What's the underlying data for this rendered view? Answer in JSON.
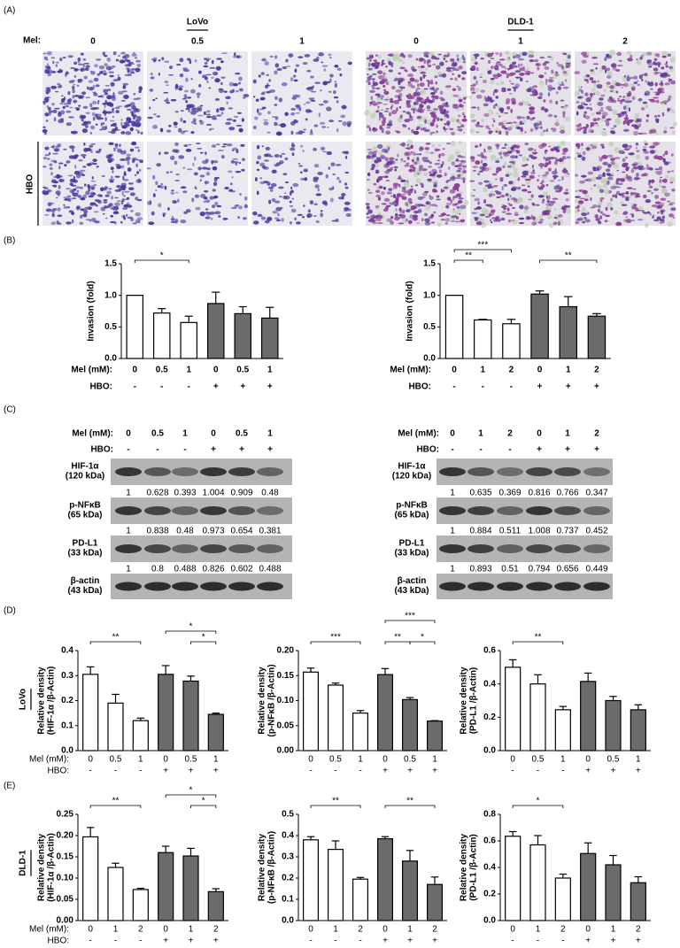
{
  "panel_labels": [
    "(A)",
    "(B)",
    "(C)",
    "(D)",
    "(E)"
  ],
  "panel_a": {
    "mel_label": "Mel:",
    "hbo_label": "HBO",
    "groups": [
      {
        "title": "LoVo",
        "doses": [
          "0",
          "0.5",
          "1"
        ]
      },
      {
        "title": "DLD-1",
        "doses": [
          "0",
          "1",
          "2"
        ]
      }
    ]
  },
  "row_labels": [
    "LoVo",
    "DLD-1"
  ],
  "western_blots": [
    {
      "mel_label": "Mel (mM):",
      "hbo_label": "HBO:",
      "mel": [
        "0",
        "0.5",
        "1",
        "0",
        "0.5",
        "1"
      ],
      "hbo": [
        "-",
        "-",
        "-",
        "+",
        "+",
        "+"
      ],
      "proteins": [
        {
          "name": "HIF-1α",
          "size": "(120 kDa)",
          "values": [
            1,
            0.628,
            0.393,
            1.004,
            0.909,
            0.48
          ]
        },
        {
          "name": "p-NFκB",
          "size": "(65 kDa)",
          "values": [
            1,
            0.838,
            0.48,
            0.973,
            0.654,
            0.381
          ]
        },
        {
          "name": "PD-L1",
          "size": "(33 kDa)",
          "values": [
            1,
            0.8,
            0.488,
            0.826,
            0.602,
            0.488
          ]
        }
      ],
      "loading": {
        "name": "β-actin",
        "size": "(43 kDa)"
      }
    },
    {
      "mel_label": "Mel (mM):",
      "hbo_label": "HBO:",
      "mel": [
        "0",
        "1",
        "2",
        "0",
        "1",
        "2"
      ],
      "hbo": [
        "-",
        "-",
        "-",
        "+",
        "+",
        "+"
      ],
      "proteins": [
        {
          "name": "HIF-1α",
          "size": "(120 kDa)",
          "values": [
            1,
            0.635,
            0.369,
            0.816,
            0.766,
            0.347
          ]
        },
        {
          "name": "p-NFκB",
          "size": "(65 kDa)",
          "values": [
            1,
            0.884,
            0.511,
            1.008,
            0.737,
            0.452
          ]
        },
        {
          "name": "PD-L1",
          "size": "(33 kDa)",
          "values": [
            1,
            0.893,
            0.51,
            0.794,
            0.656,
            0.449
          ]
        }
      ],
      "loading": {
        "name": "β-actin",
        "size": "(43 kDa)"
      }
    }
  ],
  "chart_data": [
    {
      "type": "bar",
      "ylabel": [
        "Invasion (fold)"
      ],
      "xrow_labels": [
        "Mel (mM):",
        "HBO:"
      ],
      "categories": [
        "0",
        "0.5",
        "1",
        "0",
        "0.5",
        "1"
      ],
      "hbo": [
        "-",
        "-",
        "-",
        "+",
        "+",
        "+"
      ],
      "values": [
        1.0,
        0.72,
        0.57,
        0.87,
        0.71,
        0.64
      ],
      "errors": [
        0,
        0.07,
        0.1,
        0.18,
        0.11,
        0.17
      ],
      "colors": [
        "#ffffff",
        "#ffffff",
        "#ffffff",
        "#6b6b6b",
        "#6b6b6b",
        "#6b6b6b"
      ],
      "ylim": [
        0,
        1.5
      ],
      "yticks": [
        {
          "value": 0,
          "label": "0.0"
        },
        0.5,
        {
          "value": 1,
          "label": "1.0"
        },
        1.5
      ],
      "sig": [
        {
          "from": 0,
          "to": 2,
          "label": "*"
        }
      ]
    },
    {
      "type": "bar",
      "ylabel": [
        "Invasion (fold)"
      ],
      "xrow_labels": [
        "Mel (mM):",
        "HBO:"
      ],
      "categories": [
        "0",
        "1",
        "2",
        "0",
        "1",
        "2"
      ],
      "hbo": [
        "-",
        "-",
        "-",
        "+",
        "+",
        "+"
      ],
      "values": [
        1.0,
        0.61,
        0.55,
        1.02,
        0.82,
        0.67
      ],
      "errors": [
        0,
        0.01,
        0.07,
        0.05,
        0.16,
        0.04
      ],
      "colors": [
        "#ffffff",
        "#ffffff",
        "#ffffff",
        "#6b6b6b",
        "#6b6b6b",
        "#6b6b6b"
      ],
      "ylim": [
        0,
        1.5
      ],
      "yticks": [
        {
          "value": 0,
          "label": "0.0"
        },
        0.5,
        {
          "value": 1,
          "label": "1.0"
        },
        1.5
      ],
      "sig": [
        {
          "from": 0,
          "to": 1,
          "label": "**"
        },
        {
          "from": 0,
          "to": 2,
          "label": "***"
        },
        {
          "from": 3,
          "to": 5,
          "label": "**"
        }
      ]
    },
    {
      "type": "bar",
      "ylabel": [
        "Relative density",
        "(HIF-1α /β-Actin)"
      ],
      "xrow_labels": [
        "Mel (mM):",
        "HBO:"
      ],
      "categories": [
        "0",
        "0.5",
        "1",
        "0",
        "0.5",
        "1"
      ],
      "hbo": [
        "-",
        "-",
        "-",
        "+",
        "+",
        "+"
      ],
      "values": [
        0.305,
        0.19,
        0.12,
        0.305,
        0.278,
        0.145
      ],
      "errors": [
        0.03,
        0.035,
        0.01,
        0.035,
        0.02,
        0.005
      ],
      "colors": [
        "#ffffff",
        "#ffffff",
        "#ffffff",
        "#6b6b6b",
        "#6b6b6b",
        "#6b6b6b"
      ],
      "ylim": [
        0,
        0.4
      ],
      "yticks": [
        {
          "value": 0,
          "label": "0.0"
        },
        0.1,
        0.2,
        0.3,
        0.4
      ],
      "sig": [
        {
          "from": 0,
          "to": 2,
          "label": "**"
        },
        {
          "from": 3,
          "to": 5,
          "label": "*"
        },
        {
          "from": 4,
          "to": 5,
          "label": "*"
        }
      ]
    },
    {
      "type": "bar",
      "ylabel": [
        "Relative density",
        "(p-NFκB /β-Actin)"
      ],
      "categories": [
        "0",
        "0.5",
        "1",
        "0",
        "0.5",
        "1"
      ],
      "hbo": [
        "-",
        "-",
        "-",
        "+",
        "+",
        "+"
      ],
      "values": [
        0.157,
        0.131,
        0.075,
        0.152,
        0.102,
        0.059
      ],
      "errors": [
        0.008,
        0.004,
        0.005,
        0.012,
        0.004,
        0.001
      ],
      "colors": [
        "#ffffff",
        "#ffffff",
        "#ffffff",
        "#6b6b6b",
        "#6b6b6b",
        "#6b6b6b"
      ],
      "ylim": [
        0,
        0.2
      ],
      "yticks": [
        {
          "value": 0,
          "label": "0.00"
        },
        0.05,
        {
          "value": 0.1,
          "label": "0.10"
        },
        0.15,
        {
          "value": 0.2,
          "label": "0.20"
        }
      ],
      "sig": [
        {
          "from": 0,
          "to": 2,
          "label": "***"
        },
        {
          "from": 3,
          "to": 5,
          "label": "***"
        },
        {
          "from": 3,
          "to": 4,
          "label": "**"
        },
        {
          "from": 4,
          "to": 5,
          "label": "*"
        }
      ]
    },
    {
      "type": "bar",
      "ylabel": [
        "Relative density",
        "(PD-L1 /β-Actin)"
      ],
      "categories": [
        "0",
        "0.5",
        "1",
        "0",
        "0.5",
        "1"
      ],
      "hbo": [
        "-",
        "-",
        "-",
        "+",
        "+",
        "+"
      ],
      "values": [
        0.5,
        0.4,
        0.245,
        0.415,
        0.3,
        0.245
      ],
      "errors": [
        0.045,
        0.055,
        0.02,
        0.05,
        0.025,
        0.03
      ],
      "colors": [
        "#ffffff",
        "#ffffff",
        "#ffffff",
        "#6b6b6b",
        "#6b6b6b",
        "#6b6b6b"
      ],
      "ylim": [
        0,
        0.6
      ],
      "yticks": [
        {
          "value": 0,
          "label": "0.0"
        },
        0.2,
        0.4,
        0.6
      ],
      "sig": [
        {
          "from": 0,
          "to": 2,
          "label": "**"
        }
      ]
    },
    {
      "type": "bar",
      "ylabel": [
        "Relative density",
        "(HIF-1α /β-Actin)"
      ],
      "xrow_labels": [
        "Mel (mM):",
        "HBO:"
      ],
      "categories": [
        "0",
        "1",
        "2",
        "0",
        "1",
        "2"
      ],
      "hbo": [
        "-",
        "-",
        "-",
        "+",
        "+",
        "+"
      ],
      "values": [
        0.197,
        0.125,
        0.073,
        0.16,
        0.152,
        0.068
      ],
      "errors": [
        0.022,
        0.01,
        0.003,
        0.015,
        0.018,
        0.007
      ],
      "colors": [
        "#ffffff",
        "#ffffff",
        "#ffffff",
        "#6b6b6b",
        "#6b6b6b",
        "#6b6b6b"
      ],
      "ylim": [
        0,
        0.25
      ],
      "yticks": [
        {
          "value": 0,
          "label": "0.00"
        },
        0.05,
        {
          "value": 0.1,
          "label": "0.10"
        },
        0.15,
        {
          "value": 0.2,
          "label": "0.20"
        },
        0.25
      ],
      "sig": [
        {
          "from": 0,
          "to": 2,
          "label": "**"
        },
        {
          "from": 3,
          "to": 5,
          "label": "*"
        },
        {
          "from": 4,
          "to": 5,
          "label": "*"
        }
      ]
    },
    {
      "type": "bar",
      "ylabel": [
        "Relative density",
        "(p-NFκB /β-Actin)"
      ],
      "categories": [
        "0",
        "1",
        "2",
        "0",
        "1",
        "2"
      ],
      "hbo": [
        "-",
        "-",
        "-",
        "+",
        "+",
        "+"
      ],
      "values": [
        0.38,
        0.335,
        0.195,
        0.385,
        0.28,
        0.17
      ],
      "errors": [
        0.015,
        0.04,
        0.008,
        0.01,
        0.05,
        0.035
      ],
      "colors": [
        "#ffffff",
        "#ffffff",
        "#ffffff",
        "#6b6b6b",
        "#6b6b6b",
        "#6b6b6b"
      ],
      "ylim": [
        0,
        0.5
      ],
      "yticks": [
        {
          "value": 0,
          "label": "0.0"
        },
        0.1,
        0.2,
        0.3,
        0.4,
        0.5
      ],
      "sig": [
        {
          "from": 0,
          "to": 2,
          "label": "**"
        },
        {
          "from": 3,
          "to": 5,
          "label": "**"
        }
      ]
    },
    {
      "type": "bar",
      "ylabel": [
        "Relative density",
        "(PD-L1 /β-Actin)"
      ],
      "categories": [
        "0",
        "1",
        "2",
        "0",
        "1",
        "2"
      ],
      "hbo": [
        "-",
        "-",
        "-",
        "+",
        "+",
        "+"
      ],
      "values": [
        0.635,
        0.57,
        0.32,
        0.505,
        0.42,
        0.285
      ],
      "errors": [
        0.035,
        0.07,
        0.03,
        0.08,
        0.07,
        0.045
      ],
      "colors": [
        "#ffffff",
        "#ffffff",
        "#ffffff",
        "#6b6b6b",
        "#6b6b6b",
        "#6b6b6b"
      ],
      "ylim": [
        0,
        0.8
      ],
      "yticks": [
        {
          "value": 0,
          "label": "0.0"
        },
        0.2,
        0.4,
        0.6,
        0.8
      ],
      "sig": [
        {
          "from": 0,
          "to": 2,
          "label": "*"
        }
      ]
    }
  ]
}
